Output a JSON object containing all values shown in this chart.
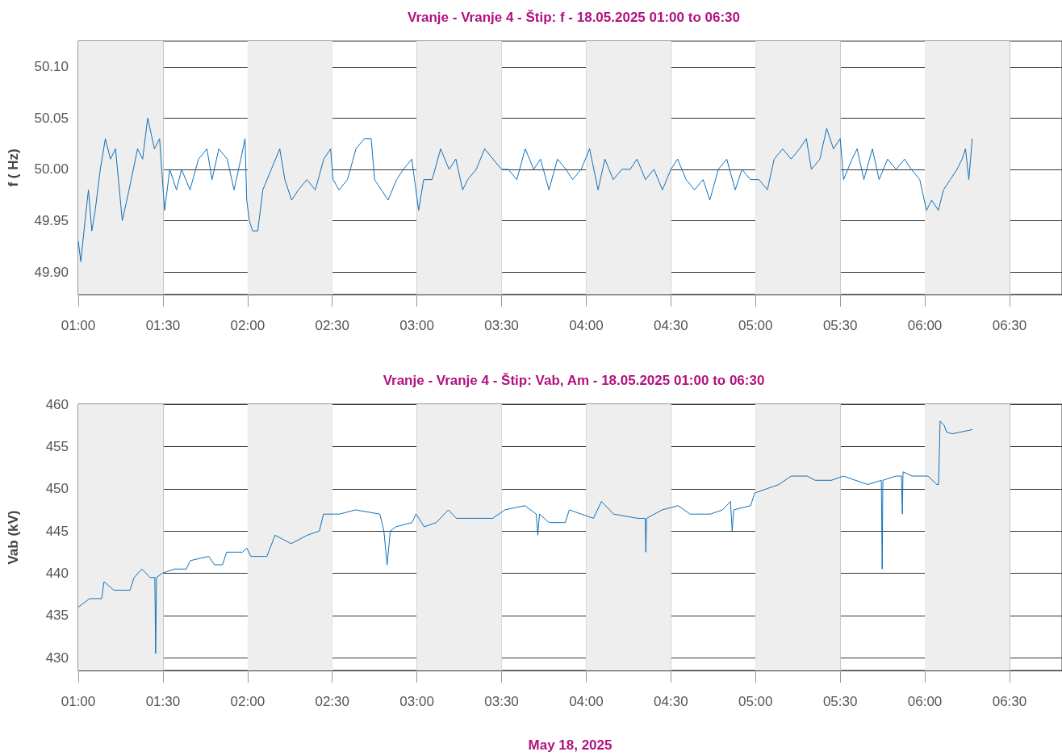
{
  "chart_data": [
    {
      "type": "line",
      "title": "Vranje - Vranje 4 - Štip: f - 18.05.2025 01:00 to 06:30",
      "ylabel": "f ( Hz)",
      "xlim": [
        1,
        6.81
      ],
      "ylim": [
        49.878,
        50.125
      ],
      "xticks": [
        {
          "value": 1,
          "label": "01:00"
        },
        {
          "value": 1.5,
          "label": "01:30"
        },
        {
          "value": 2,
          "label": "02:00"
        },
        {
          "value": 2.5,
          "label": "02:30"
        },
        {
          "value": 3,
          "label": "03:00"
        },
        {
          "value": 3.5,
          "label": "03:30"
        },
        {
          "value": 4,
          "label": "04:00"
        },
        {
          "value": 4.5,
          "label": "04:30"
        },
        {
          "value": 5,
          "label": "05:00"
        },
        {
          "value": 5.5,
          "label": "05:30"
        },
        {
          "value": 6,
          "label": "06:00"
        },
        {
          "value": 6.5,
          "label": "06:30"
        }
      ],
      "yticks": [
        {
          "value": 49.9,
          "label": "49.90"
        },
        {
          "value": 49.95,
          "label": "49.95"
        },
        {
          "value": 50,
          "label": "50.00"
        },
        {
          "value": 50.05,
          "label": "50.05"
        },
        {
          "value": 50.1,
          "label": "50.10"
        }
      ],
      "grid": true,
      "marker": "none",
      "bands": [
        {
          "axis": "x",
          "from": 1,
          "to": 1.5,
          "color": "#eeeeee"
        },
        {
          "axis": "x",
          "from": 2,
          "to": 2.5,
          "color": "#eeeeee"
        },
        {
          "axis": "x",
          "from": 3,
          "to": 3.5,
          "color": "#eeeeee"
        },
        {
          "axis": "x",
          "from": 4,
          "to": 4.5,
          "color": "#eeeeee"
        },
        {
          "axis": "x",
          "from": 5,
          "to": 5.5,
          "color": "#eeeeee"
        },
        {
          "axis": "x",
          "from": 6,
          "to": 6.5,
          "color": "#eeeeee"
        }
      ],
      "series": [
        {
          "color": "#1070b8",
          "x": [
            1.0,
            1.015,
            1.04,
            1.06,
            1.08,
            1.1,
            1.13,
            1.16,
            1.19,
            1.22,
            1.26,
            1.3,
            1.35,
            1.38,
            1.41,
            1.45,
            1.48,
            1.51,
            1.54,
            1.58,
            1.61,
            1.66,
            1.71,
            1.76,
            1.79,
            1.83,
            1.88,
            1.92,
            1.96,
            1.985,
            1.995,
            2.01,
            2.03,
            2.06,
            2.09,
            2.14,
            2.19,
            2.22,
            2.26,
            2.3,
            2.35,
            2.4,
            2.45,
            2.49,
            2.505,
            2.54,
            2.59,
            2.64,
            2.69,
            2.73,
            2.75,
            2.79,
            2.83,
            2.88,
            2.92,
            2.97,
            3.01,
            3.04,
            3.09,
            3.14,
            3.19,
            3.23,
            3.27,
            3.3,
            3.35,
            3.4,
            3.45,
            3.5,
            3.54,
            3.59,
            3.64,
            3.69,
            3.73,
            3.78,
            3.83,
            3.88,
            3.92,
            3.97,
            4.02,
            4.07,
            4.11,
            4.16,
            4.21,
            4.26,
            4.3,
            4.35,
            4.4,
            4.45,
            4.5,
            4.54,
            4.59,
            4.64,
            4.69,
            4.73,
            4.78,
            4.83,
            4.88,
            4.92,
            4.97,
            5.02,
            5.07,
            5.11,
            5.16,
            5.21,
            5.26,
            5.3,
            5.33,
            5.38,
            5.42,
            5.46,
            5.5,
            5.52,
            5.57,
            5.6,
            5.64,
            5.69,
            5.73,
            5.78,
            5.83,
            5.88,
            5.92,
            5.97,
            6.01,
            6.04,
            6.08,
            6.11,
            6.15,
            6.19,
            6.22,
            6.24,
            6.26,
            6.28
          ],
          "values": [
            49.93,
            49.91,
            49.95,
            49.98,
            49.94,
            49.96,
            50.0,
            50.03,
            50.01,
            50.02,
            49.95,
            49.98,
            50.02,
            50.01,
            50.05,
            50.02,
            50.03,
            49.96,
            50.0,
            49.98,
            50.0,
            49.98,
            50.01,
            50.02,
            49.99,
            50.02,
            50.01,
            49.98,
            50.01,
            50.03,
            49.97,
            49.95,
            49.94,
            49.94,
            49.98,
            50.0,
            50.02,
            49.99,
            49.97,
            49.98,
            49.99,
            49.98,
            50.01,
            50.02,
            49.99,
            49.98,
            49.99,
            50.02,
            50.03,
            50.03,
            49.99,
            49.98,
            49.97,
            49.99,
            50.0,
            50.01,
            49.96,
            49.99,
            49.99,
            50.02,
            50.0,
            50.01,
            49.98,
            49.99,
            50.0,
            50.02,
            50.01,
            50.0,
            50.0,
            49.99,
            50.02,
            50.0,
            50.01,
            49.98,
            50.01,
            50.0,
            49.99,
            50.0,
            50.02,
            49.98,
            50.01,
            49.99,
            50.0,
            50.0,
            50.01,
            49.99,
            50.0,
            49.98,
            50.0,
            50.01,
            49.99,
            49.98,
            49.99,
            49.97,
            50.0,
            50.01,
            49.98,
            50.0,
            49.99,
            49.99,
            49.98,
            50.01,
            50.02,
            50.01,
            50.02,
            50.03,
            50.0,
            50.01,
            50.04,
            50.02,
            50.03,
            49.99,
            50.01,
            50.02,
            49.99,
            50.02,
            49.99,
            50.01,
            50.0,
            50.01,
            50.0,
            49.99,
            49.96,
            49.97,
            49.96,
            49.98,
            49.99,
            50.0,
            50.01,
            50.02,
            49.99,
            50.03
          ]
        }
      ]
    },
    {
      "type": "line",
      "title": "Vranje - Vranje 4 - Štip: Vab, Am - 18.05.2025 01:00 to 06:30",
      "ylabel": "Vab (kV)",
      "xlabel": "May 18, 2025",
      "xlim": [
        1,
        6.81
      ],
      "ylim": [
        428.5,
        460
      ],
      "xticks": [
        {
          "value": 1,
          "label": "01:00"
        },
        {
          "value": 1.5,
          "label": "01:30"
        },
        {
          "value": 2,
          "label": "02:00"
        },
        {
          "value": 2.5,
          "label": "02:30"
        },
        {
          "value": 3,
          "label": "03:00"
        },
        {
          "value": 3.5,
          "label": "03:30"
        },
        {
          "value": 4,
          "label": "04:00"
        },
        {
          "value": 4.5,
          "label": "04:30"
        },
        {
          "value": 5,
          "label": "05:00"
        },
        {
          "value": 5.5,
          "label": "05:30"
        },
        {
          "value": 6,
          "label": "06:00"
        },
        {
          "value": 6.5,
          "label": "06:30"
        }
      ],
      "yticks": [
        430,
        435,
        440,
        445,
        450,
        455,
        460
      ],
      "grid": true,
      "marker": "none",
      "bands": [
        {
          "axis": "x",
          "from": 1,
          "to": 1.5,
          "color": "#eeeeee"
        },
        {
          "axis": "x",
          "from": 2,
          "to": 2.5,
          "color": "#eeeeee"
        },
        {
          "axis": "x",
          "from": 3,
          "to": 3.5,
          "color": "#eeeeee"
        },
        {
          "axis": "x",
          "from": 4,
          "to": 4.5,
          "color": "#eeeeee"
        },
        {
          "axis": "x",
          "from": 5,
          "to": 5.5,
          "color": "#eeeeee"
        },
        {
          "axis": "x",
          "from": 6,
          "to": 6.5,
          "color": "#eeeeee"
        }
      ],
      "series": [
        {
          "color": "#1070b8",
          "x": [
            1.0,
            1.067,
            1.138,
            1.152,
            1.21,
            1.305,
            1.33,
            1.376,
            1.424,
            1.452,
            1.457,
            1.462,
            1.495,
            1.567,
            1.638,
            1.662,
            1.771,
            1.805,
            1.852,
            1.876,
            1.971,
            1.995,
            2.019,
            2.114,
            2.162,
            2.21,
            2.257,
            2.352,
            2.424,
            2.448,
            2.543,
            2.638,
            2.781,
            2.805,
            2.824,
            2.843,
            2.876,
            2.971,
            2.995,
            3.043,
            3.114,
            3.186,
            3.233,
            3.352,
            3.448,
            3.519,
            3.638,
            3.705,
            3.714,
            3.724,
            3.781,
            3.876,
            3.9,
            3.971,
            4.043,
            4.09,
            4.162,
            4.305,
            4.348,
            4.352,
            4.357,
            4.448,
            4.543,
            4.614,
            4.733,
            4.805,
            4.852,
            4.862,
            4.871,
            4.971,
            4.995,
            5.067,
            5.138,
            5.21,
            5.305,
            5.352,
            5.448,
            5.519,
            5.59,
            5.662,
            5.743,
            5.748,
            5.752,
            5.829,
            5.862,
            5.867,
            5.871,
            5.924,
            6.019,
            6.071,
            6.081,
            6.09,
            6.114,
            6.129,
            6.162,
            6.281
          ],
          "values": [
            436,
            437,
            437,
            439,
            438,
            438,
            439.5,
            440.5,
            439.5,
            439.5,
            430.5,
            439.5,
            440,
            440.5,
            440.5,
            441.5,
            442,
            441,
            441,
            442.5,
            442.5,
            443,
            442,
            442,
            444.5,
            444,
            443.5,
            444.5,
            445,
            447,
            447,
            447.5,
            447,
            445,
            441,
            445,
            445.5,
            446,
            447,
            445.5,
            446,
            447.5,
            446.5,
            446.5,
            446.5,
            447.5,
            448,
            447,
            444.5,
            447,
            446,
            446,
            447.5,
            447,
            446.5,
            448.5,
            447,
            446.5,
            446.5,
            442.5,
            446.5,
            447.5,
            448,
            447,
            447,
            447.5,
            448.5,
            445,
            447.5,
            448,
            449.5,
            450,
            450.5,
            451.5,
            451.5,
            451,
            451,
            451.5,
            451,
            450.5,
            451,
            440.5,
            451,
            451.5,
            451.5,
            447,
            452,
            451.5,
            451.5,
            450.5,
            450.5,
            458,
            457.5,
            456.7,
            456.5,
            457
          ]
        }
      ]
    }
  ]
}
